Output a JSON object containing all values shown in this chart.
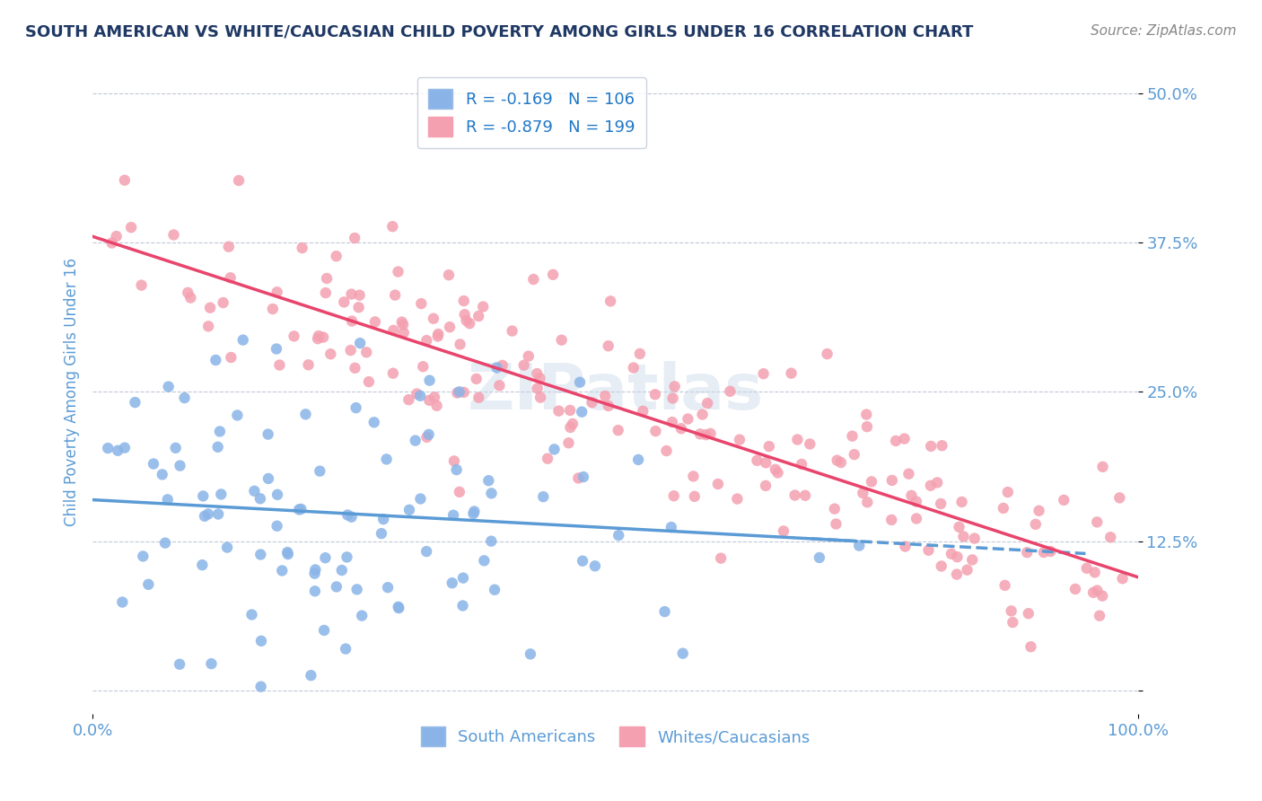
{
  "title": "SOUTH AMERICAN VS WHITE/CAUCASIAN CHILD POVERTY AMONG GIRLS UNDER 16 CORRELATION CHART",
  "source": "Source: ZipAtlas.com",
  "ylabel": "Child Poverty Among Girls Under 16",
  "xlabel": "",
  "xlim": [
    0,
    1.0
  ],
  "ylim": [
    -0.02,
    0.52
  ],
  "yticks": [
    0.0,
    0.125,
    0.25,
    0.375,
    0.5
  ],
  "ytick_labels": [
    "",
    "12.5%",
    "25.0%",
    "37.5%",
    "50.0%"
  ],
  "xtick_labels": [
    "0.0%",
    "100.0%"
  ],
  "r_blue": -0.169,
  "n_blue": 106,
  "r_pink": -0.879,
  "n_pink": 199,
  "blue_color": "#8ab4e8",
  "pink_color": "#f4a0b0",
  "blue_line_color": "#5b9bd5",
  "pink_line_color": "#e8446c",
  "title_color": "#1f3864",
  "axis_color": "#5b9bd5",
  "watermark": "ZIPatlas",
  "legend_r_color": "#1f78c8",
  "seed": 42
}
